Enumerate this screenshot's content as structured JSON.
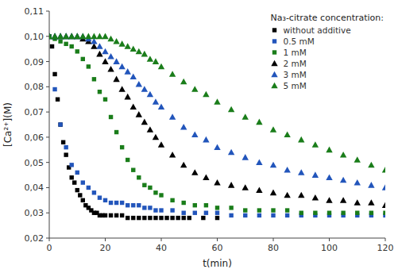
{
  "chart_data": {
    "type": "scatter",
    "xlabel": "t(min)",
    "ylabel": "[Ca²⁺](M)",
    "legend_title": "Na₃-citrate concentration:",
    "legend": "upper right",
    "grid": false,
    "xlim": [
      0,
      120
    ],
    "ylim": [
      0.02,
      0.11
    ],
    "xticks": [
      0,
      20,
      40,
      60,
      80,
      100,
      120
    ],
    "yticks": [
      {
        "value": 0.02,
        "label": "0,02"
      },
      {
        "value": 0.03,
        "label": "0,03"
      },
      {
        "value": 0.04,
        "label": "0,04"
      },
      {
        "value": 0.05,
        "label": "0,05"
      },
      {
        "value": 0.06,
        "label": "0,06"
      },
      {
        "value": 0.07,
        "label": "0,07"
      },
      {
        "value": 0.08,
        "label": "0,08"
      },
      {
        "value": 0.09,
        "label": "0,09"
      },
      {
        "value": 0.1,
        "label": "0,10"
      },
      {
        "value": 0.11,
        "label": "0,11"
      }
    ],
    "series": [
      {
        "name": "without additive",
        "color": "#000000",
        "marker": "square",
        "x": [
          0,
          1,
          2,
          3,
          4,
          5,
          6,
          7,
          8,
          9,
          10,
          11,
          12,
          13,
          14,
          15,
          16,
          17,
          18,
          19,
          20,
          22,
          24,
          26,
          28,
          30,
          32,
          34,
          36,
          38,
          40,
          42,
          44,
          46,
          48,
          50,
          55,
          60
        ],
        "values": [
          0.1,
          0.096,
          0.085,
          0.075,
          0.065,
          0.058,
          0.053,
          0.048,
          0.044,
          0.042,
          0.039,
          0.037,
          0.035,
          0.033,
          0.032,
          0.031,
          0.03,
          0.03,
          0.029,
          0.029,
          0.029,
          0.029,
          0.029,
          0.029,
          0.028,
          0.028,
          0.028,
          0.028,
          0.028,
          0.028,
          0.028,
          0.028,
          0.028,
          0.028,
          0.028,
          0.028,
          0.028,
          0.028
        ]
      },
      {
        "name": "0.5 mM",
        "color": "#2255bb",
        "marker": "square",
        "x": [
          0,
          2,
          4,
          6,
          8,
          10,
          12,
          14,
          16,
          18,
          20,
          22,
          24,
          26,
          28,
          30,
          32,
          34,
          36,
          38,
          40,
          44,
          48,
          52,
          56,
          60,
          65,
          70,
          75,
          80,
          85,
          90,
          95,
          100,
          105,
          110,
          115,
          120
        ],
        "values": [
          0.1,
          0.079,
          0.065,
          0.056,
          0.049,
          0.046,
          0.042,
          0.04,
          0.038,
          0.036,
          0.035,
          0.034,
          0.034,
          0.034,
          0.033,
          0.033,
          0.033,
          0.032,
          0.032,
          0.031,
          0.031,
          0.031,
          0.03,
          0.03,
          0.03,
          0.03,
          0.029,
          0.029,
          0.029,
          0.029,
          0.029,
          0.029,
          0.029,
          0.029,
          0.029,
          0.029,
          0.029,
          0.029
        ]
      },
      {
        "name": "1 mM",
        "color": "#1a7d1a",
        "marker": "square",
        "x": [
          0,
          2,
          4,
          6,
          8,
          10,
          12,
          14,
          16,
          18,
          20,
          22,
          24,
          26,
          28,
          30,
          32,
          34,
          36,
          38,
          40,
          44,
          48,
          52,
          56,
          60,
          65,
          70,
          75,
          80,
          85,
          90,
          95,
          100,
          105,
          110,
          115,
          120
        ],
        "values": [
          0.1,
          0.099,
          0.098,
          0.097,
          0.096,
          0.094,
          0.091,
          0.088,
          0.083,
          0.078,
          0.075,
          0.068,
          0.062,
          0.056,
          0.051,
          0.047,
          0.044,
          0.041,
          0.04,
          0.038,
          0.037,
          0.035,
          0.034,
          0.033,
          0.033,
          0.032,
          0.032,
          0.031,
          0.031,
          0.031,
          0.031,
          0.03,
          0.03,
          0.03,
          0.03,
          0.03,
          0.03,
          0.03
        ]
      },
      {
        "name": "2 mM",
        "color": "#000000",
        "marker": "triangle",
        "x": [
          0,
          2,
          4,
          6,
          8,
          10,
          12,
          14,
          16,
          18,
          20,
          22,
          24,
          26,
          28,
          30,
          32,
          34,
          36,
          38,
          40,
          44,
          48,
          52,
          56,
          60,
          65,
          70,
          75,
          80,
          85,
          90,
          95,
          100,
          105,
          110,
          115,
          120
        ],
        "values": [
          0.1,
          0.1,
          0.1,
          0.1,
          0.1,
          0.1,
          0.099,
          0.098,
          0.096,
          0.093,
          0.09,
          0.087,
          0.083,
          0.079,
          0.076,
          0.072,
          0.069,
          0.066,
          0.063,
          0.06,
          0.057,
          0.053,
          0.049,
          0.046,
          0.044,
          0.042,
          0.041,
          0.04,
          0.039,
          0.038,
          0.037,
          0.037,
          0.036,
          0.035,
          0.035,
          0.034,
          0.034,
          0.033
        ]
      },
      {
        "name": "3 mM",
        "color": "#2255bb",
        "marker": "triangle",
        "x": [
          0,
          2,
          4,
          6,
          8,
          10,
          12,
          14,
          16,
          18,
          20,
          22,
          24,
          26,
          28,
          30,
          32,
          34,
          36,
          38,
          40,
          44,
          48,
          52,
          56,
          60,
          65,
          70,
          75,
          80,
          85,
          90,
          95,
          100,
          105,
          110,
          115,
          120
        ],
        "values": [
          0.1,
          0.1,
          0.1,
          0.1,
          0.1,
          0.1,
          0.1,
          0.099,
          0.098,
          0.096,
          0.094,
          0.092,
          0.09,
          0.088,
          0.086,
          0.084,
          0.081,
          0.079,
          0.077,
          0.074,
          0.072,
          0.068,
          0.064,
          0.061,
          0.059,
          0.056,
          0.054,
          0.052,
          0.05,
          0.049,
          0.047,
          0.046,
          0.045,
          0.044,
          0.043,
          0.042,
          0.041,
          0.04
        ]
      },
      {
        "name": "5 mM",
        "color": "#1a7d1a",
        "marker": "triangle",
        "x": [
          0,
          2,
          4,
          6,
          8,
          10,
          12,
          14,
          16,
          18,
          20,
          22,
          24,
          26,
          28,
          30,
          32,
          34,
          36,
          38,
          40,
          44,
          48,
          52,
          56,
          60,
          65,
          70,
          75,
          80,
          85,
          90,
          95,
          100,
          105,
          110,
          115,
          120
        ],
        "values": [
          0.1,
          0.1,
          0.1,
          0.1,
          0.1,
          0.1,
          0.1,
          0.1,
          0.1,
          0.1,
          0.1,
          0.099,
          0.098,
          0.097,
          0.096,
          0.095,
          0.094,
          0.093,
          0.091,
          0.09,
          0.088,
          0.085,
          0.082,
          0.079,
          0.077,
          0.074,
          0.071,
          0.068,
          0.066,
          0.063,
          0.061,
          0.059,
          0.057,
          0.055,
          0.053,
          0.051,
          0.049,
          0.047
        ]
      }
    ]
  }
}
